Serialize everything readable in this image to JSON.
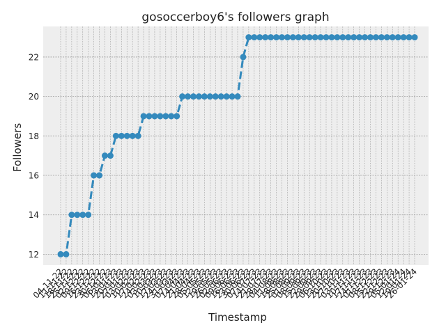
{
  "chart_data": {
    "type": "line",
    "title": "gosoccerboy6's followers graph",
    "xlabel": "Timestamp",
    "ylabel": "Followers",
    "ylim": [
      11.45,
      23.55
    ],
    "yticks": [
      12,
      14,
      16,
      18,
      20,
      22
    ],
    "grid": true,
    "x": [
      "04-11-22",
      "11-11-22",
      "18-11-22",
      "25-11-22",
      "02-12-22",
      "09-12-22",
      "16-12-22",
      "23-12-22",
      "30-12-22",
      "06-01-23",
      "13-01-23",
      "20-01-23",
      "27-01-23",
      "03-02-23",
      "10-02-23",
      "17-02-23",
      "24-02-23",
      "03-03-23",
      "10-03-23",
      "17-03-23",
      "24-03-23",
      "31-03-23",
      "07-04-23",
      "14-04-23",
      "21-04-23",
      "28-04-23",
      "05-05-23",
      "12-05-23",
      "19-05-23",
      "26-05-23",
      "02-06-23",
      "09-06-23",
      "16-06-23",
      "23-06-23",
      "30-06-23",
      "07-07-23",
      "14-07-23",
      "21-07-23",
      "28-07-23",
      "04-08-23",
      "11-08-23",
      "18-08-23",
      "25-08-23",
      "01-09-23",
      "08-09-23",
      "15-09-23",
      "22-09-23",
      "29-09-23",
      "06-10-23",
      "13-10-23",
      "20-10-23",
      "27-10-23",
      "03-11-23",
      "10-11-23",
      "17-11-23",
      "24-11-23",
      "01-12-23",
      "08-12-23",
      "15-12-23",
      "22-12-23",
      "29-12-23",
      "05-01-24",
      "12-01-24",
      "19-01-24",
      "26-01-24"
    ],
    "series": [
      {
        "values": [
          12,
          12,
          14,
          14,
          14,
          14,
          16,
          16,
          17,
          17,
          18,
          18,
          18,
          18,
          18,
          19,
          19,
          19,
          19,
          19,
          19,
          19,
          20,
          20,
          20,
          20,
          20,
          20,
          20,
          20,
          20,
          20,
          20,
          22,
          23,
          23,
          23,
          23,
          23,
          23,
          23,
          23,
          23,
          23,
          23,
          23,
          23,
          23,
          23,
          23,
          23,
          23,
          23,
          23,
          23,
          23,
          23,
          23,
          23,
          23,
          23,
          23,
          23,
          23,
          23
        ],
        "color": "#348abd",
        "line_style": "dashed",
        "marker": "circle"
      }
    ],
    "background": "#eeeeee"
  }
}
